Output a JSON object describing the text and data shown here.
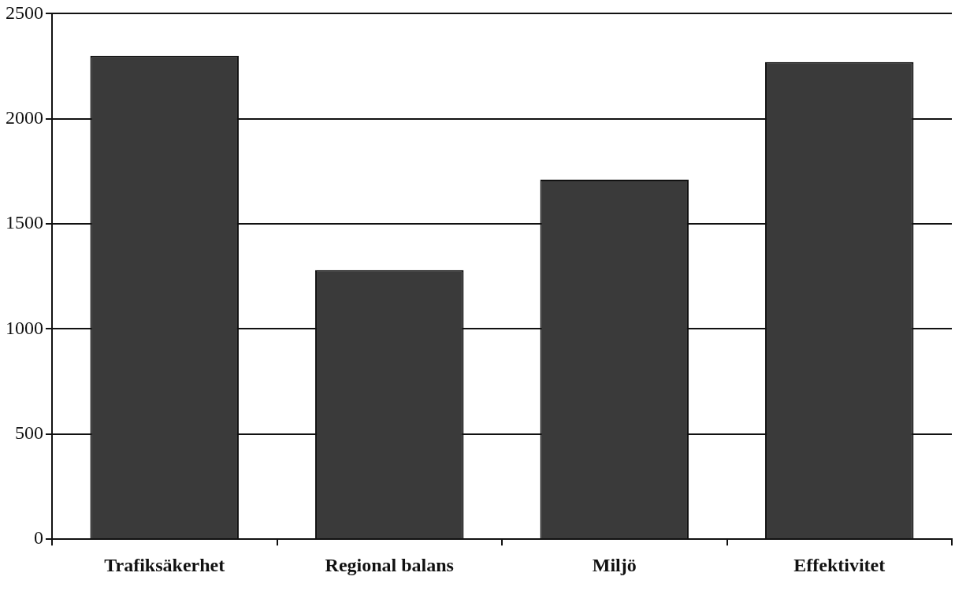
{
  "chart_data": {
    "type": "bar",
    "categories": [
      "Trafiksäkerhet",
      "Regional balans",
      "Miljö",
      "Effektivitet"
    ],
    "values": [
      2300,
      1280,
      1710,
      2270
    ],
    "color": "#3a3a3a",
    "ylim": [
      0,
      2500
    ],
    "yticks": [
      0,
      500,
      1000,
      1500,
      2000,
      2500
    ],
    "grid": "y",
    "legend": false
  }
}
